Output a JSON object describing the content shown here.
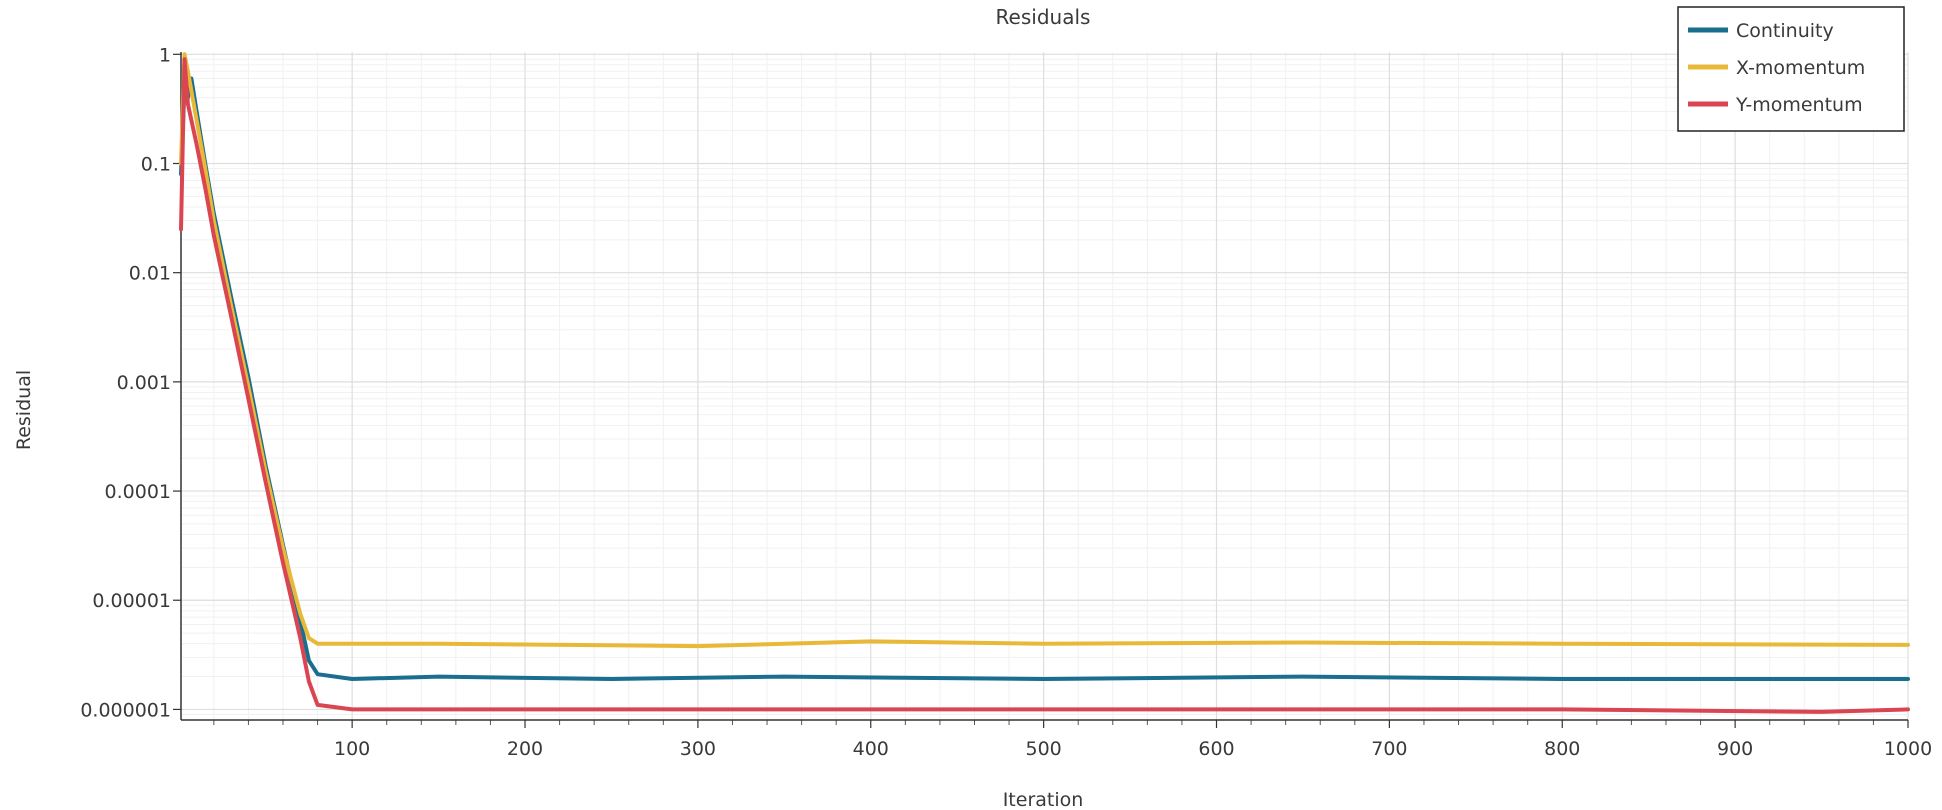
{
  "chart_data": {
    "type": "line",
    "title": "Residuals",
    "xlabel": "Iteration",
    "ylabel": "Residual",
    "xlim": [
      1,
      1000
    ],
    "ylim": [
      8e-07,
      1.05
    ],
    "y_scale": "log",
    "grid": true,
    "legend_position": "top-right",
    "x_ticks": [
      100,
      200,
      300,
      400,
      500,
      600,
      700,
      800,
      900,
      1000
    ],
    "x_tick_labels": [
      "100",
      "200",
      "300",
      "400",
      "500",
      "600",
      "700",
      "800",
      "900",
      "1000"
    ],
    "y_ticks": [
      1e-06,
      1e-05,
      0.0001,
      0.001,
      0.01,
      0.1,
      1
    ],
    "y_tick_labels": [
      "0.000001",
      "0.00001",
      "0.0001",
      "0.001",
      "0.01",
      "0.1",
      "1"
    ],
    "series": [
      {
        "name": "Continuity",
        "color": "#1a6e8e",
        "points": [
          [
            1,
            0.08
          ],
          [
            3,
            0.5
          ],
          [
            5,
            0.4
          ],
          [
            7,
            0.6
          ],
          [
            10,
            0.3
          ],
          [
            15,
            0.1
          ],
          [
            20,
            0.035
          ],
          [
            30,
            0.006
          ],
          [
            40,
            0.0011
          ],
          [
            50,
            0.00017
          ],
          [
            60,
            3.2e-05
          ],
          [
            70,
            6.5e-06
          ],
          [
            75,
            2.8e-06
          ],
          [
            80,
            2.1e-06
          ],
          [
            100,
            1.9e-06
          ],
          [
            150,
            2e-06
          ],
          [
            250,
            1.9e-06
          ],
          [
            350,
            2e-06
          ],
          [
            500,
            1.9e-06
          ],
          [
            650,
            2e-06
          ],
          [
            800,
            1.9e-06
          ],
          [
            1000,
            1.9e-06
          ]
        ]
      },
      {
        "name": "X-momentum",
        "color": "#e8b838",
        "points": [
          [
            1,
            0.1
          ],
          [
            3,
            1
          ],
          [
            5,
            0.7
          ],
          [
            10,
            0.25
          ],
          [
            15,
            0.09
          ],
          [
            20,
            0.03
          ],
          [
            30,
            0.005
          ],
          [
            40,
            0.0009
          ],
          [
            50,
            0.00015
          ],
          [
            60,
            3e-05
          ],
          [
            70,
            7.5e-06
          ],
          [
            75,
            4.5e-06
          ],
          [
            80,
            4e-06
          ],
          [
            150,
            4e-06
          ],
          [
            300,
            3.8e-06
          ],
          [
            400,
            4.2e-06
          ],
          [
            500,
            4e-06
          ],
          [
            650,
            4.1e-06
          ],
          [
            800,
            4e-06
          ],
          [
            1000,
            3.9e-06
          ]
        ]
      },
      {
        "name": "Y-momentum",
        "color": "#d94550",
        "points": [
          [
            1,
            0.025
          ],
          [
            3,
            0.9
          ],
          [
            5,
            0.35
          ],
          [
            10,
            0.15
          ],
          [
            15,
            0.06
          ],
          [
            20,
            0.022
          ],
          [
            30,
            0.004
          ],
          [
            40,
            0.0007
          ],
          [
            50,
            0.00012
          ],
          [
            60,
            2.2e-05
          ],
          [
            70,
            4.5e-06
          ],
          [
            75,
            1.8e-06
          ],
          [
            80,
            1.1e-06
          ],
          [
            100,
            1e-06
          ],
          [
            250,
            1e-06
          ],
          [
            400,
            1e-06
          ],
          [
            600,
            1e-06
          ],
          [
            800,
            1e-06
          ],
          [
            950,
            9.5e-07
          ],
          [
            1000,
            1e-06
          ]
        ]
      }
    ]
  }
}
